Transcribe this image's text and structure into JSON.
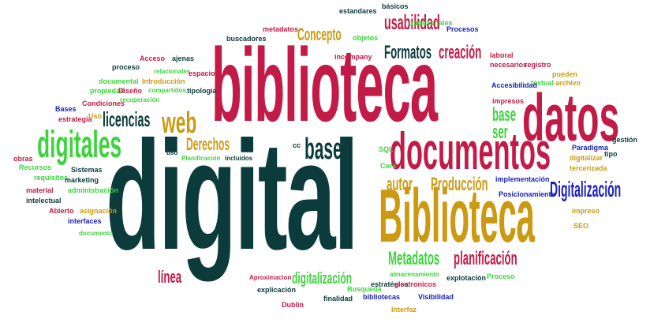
{
  "palette": {
    "dark": "#0b3b3b",
    "red": "#c31b48",
    "gold": "#cc9a12",
    "green": "#3cd43c",
    "blue": "#1a22b8"
  },
  "words": [
    {
      "text": "digital",
      "color": "dark"
    },
    {
      "text": "biblioteca",
      "color": "red"
    },
    {
      "text": "Biblioteca",
      "color": "gold"
    },
    {
      "text": "documentos",
      "color": "red"
    },
    {
      "text": "datos",
      "color": "red"
    },
    {
      "text": "digitales",
      "color": "green"
    },
    {
      "text": "Digitalización",
      "color": "blue"
    },
    {
      "text": "bases",
      "color": "dark"
    },
    {
      "text": "web",
      "color": "gold"
    },
    {
      "text": "licencias",
      "color": "dark"
    },
    {
      "text": "Derechos",
      "color": "gold"
    },
    {
      "text": "base",
      "color": "green"
    },
    {
      "text": "ser",
      "color": "green"
    },
    {
      "text": "usabilidad",
      "color": "red"
    },
    {
      "text": "Concepto",
      "color": "gold"
    },
    {
      "text": "Formatos",
      "color": "dark"
    },
    {
      "text": "creación",
      "color": "red"
    },
    {
      "text": "autor",
      "color": "gold"
    },
    {
      "text": "Producción",
      "color": "gold"
    },
    {
      "text": "Metadatos",
      "color": "green"
    },
    {
      "text": "planificación",
      "color": "red"
    },
    {
      "text": "línea",
      "color": "red"
    },
    {
      "text": "digitalización",
      "color": "green"
    },
    {
      "text": "metadatos",
      "color": "red"
    },
    {
      "text": "estandares",
      "color": "dark"
    },
    {
      "text": "básicos",
      "color": "dark"
    },
    {
      "text": "tradicionales",
      "color": "green"
    },
    {
      "text": "Procesos",
      "color": "blue"
    },
    {
      "text": "buscadores",
      "color": "dark"
    },
    {
      "text": "objetos",
      "color": "green"
    },
    {
      "text": "incompany",
      "color": "red"
    },
    {
      "text": "laboral",
      "color": "red"
    },
    {
      "text": "necesarios",
      "color": "red"
    },
    {
      "text": "registro",
      "color": "red"
    },
    {
      "text": "pueden",
      "color": "gold"
    },
    {
      "text": "textual",
      "color": "green"
    },
    {
      "text": "archivo",
      "color": "gold"
    },
    {
      "text": "Accesibilidad",
      "color": "blue"
    },
    {
      "text": "impresos",
      "color": "red"
    },
    {
      "text": "tipo",
      "color": "dark"
    },
    {
      "text": "gestión",
      "color": "dark"
    },
    {
      "text": "Paradigma",
      "color": "blue"
    },
    {
      "text": "digitalizar",
      "color": "gold"
    },
    {
      "text": "tercerizada",
      "color": "gold"
    },
    {
      "text": "implementación",
      "color": "blue"
    },
    {
      "text": "Posicionamiento",
      "color": "blue"
    },
    {
      "text": "impreso",
      "color": "gold"
    },
    {
      "text": "SEO",
      "color": "gold"
    },
    {
      "text": "SQL",
      "color": "green"
    },
    {
      "text": "Core",
      "color": "green"
    },
    {
      "text": "cc",
      "color": "dark"
    },
    {
      "text": "Acceso",
      "color": "red"
    },
    {
      "text": "ajenas",
      "color": "dark"
    },
    {
      "text": "proceso",
      "color": "dark"
    },
    {
      "text": "relacionales",
      "color": "green"
    },
    {
      "text": "espacios",
      "color": "red"
    },
    {
      "text": "documental",
      "color": "green"
    },
    {
      "text": "Introducción",
      "color": "gold"
    },
    {
      "text": "propiedad",
      "color": "green"
    },
    {
      "text": "Diseño",
      "color": "red"
    },
    {
      "text": "compartidos",
      "color": "green"
    },
    {
      "text": "tipología",
      "color": "dark"
    },
    {
      "text": "Bases",
      "color": "blue"
    },
    {
      "text": "Condiciones",
      "color": "red"
    },
    {
      "text": "recuperación",
      "color": "green"
    },
    {
      "text": "estrategia",
      "color": "red"
    },
    {
      "text": "Uso",
      "color": "gold"
    },
    {
      "text": "obras",
      "color": "red"
    },
    {
      "text": "Recursos",
      "color": "green"
    },
    {
      "text": "Sistemas",
      "color": "dark"
    },
    {
      "text": "requisitos",
      "color": "green"
    },
    {
      "text": "marketing",
      "color": "dark"
    },
    {
      "text": "material",
      "color": "red"
    },
    {
      "text": "administración",
      "color": "green"
    },
    {
      "text": "intelectual",
      "color": "dark"
    },
    {
      "text": "Abierto",
      "color": "red"
    },
    {
      "text": "asignación",
      "color": "gold"
    },
    {
      "text": "interfaces",
      "color": "blue"
    },
    {
      "text": "documento",
      "color": "green"
    },
    {
      "text": "uso",
      "color": "dark"
    },
    {
      "text": "Planificación",
      "color": "green"
    },
    {
      "text": "incluidos",
      "color": "dark"
    },
    {
      "text": "Aproximacion",
      "color": "red"
    },
    {
      "text": "explicación",
      "color": "dark"
    },
    {
      "text": "Dublin",
      "color": "red"
    },
    {
      "text": "finalidad",
      "color": "dark"
    },
    {
      "text": "Busqueda",
      "color": "green"
    },
    {
      "text": "estratégica",
      "color": "dark"
    },
    {
      "text": "almacenamiento",
      "color": "green"
    },
    {
      "text": "electronicos",
      "color": "red"
    },
    {
      "text": "bibliotecas",
      "color": "blue"
    },
    {
      "text": "Visibilidad",
      "color": "blue"
    },
    {
      "text": "Interfaz",
      "color": "gold"
    },
    {
      "text": "explotación",
      "color": "dark"
    },
    {
      "text": "Proceso",
      "color": "green"
    }
  ]
}
